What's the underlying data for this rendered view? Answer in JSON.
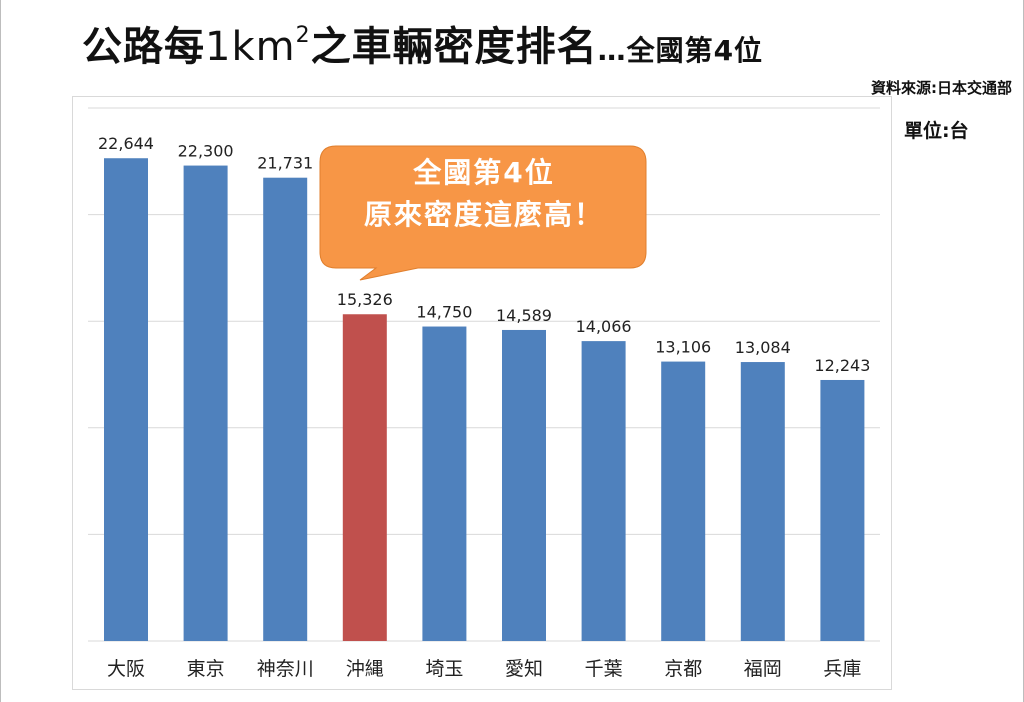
{
  "header": {
    "title_prefix": "公路每",
    "title_km": "1km",
    "title_sup": "2",
    "title_suffix": "之車輛密度排名",
    "title_sub": "…全國第4位",
    "source": "資料來源:日本交通部",
    "unit": "單位:台"
  },
  "callout": {
    "line1": "全國第4位",
    "line2": "原來密度這麼高！"
  },
  "colors": {
    "bar": "#4f81bd",
    "highlight_bar": "#c0504d",
    "callout": "#f79646",
    "gridline": "#d9d9d9"
  },
  "chart_data": {
    "type": "bar",
    "categories": [
      "大阪",
      "東京",
      "神奈川",
      "沖縄",
      "埼玉",
      "愛知",
      "千葉",
      "京都",
      "福岡",
      "兵庫"
    ],
    "values": [
      22644,
      22300,
      21731,
      15326,
      14750,
      14589,
      14066,
      13106,
      13084,
      12243
    ],
    "data_labels": [
      "22,644",
      "22,300",
      "21,731",
      "15,326",
      "14,750",
      "14,589",
      "14,066",
      "13,106",
      "13,084",
      "12,243"
    ],
    "highlight_index": 3,
    "ylim": [
      0,
      25000
    ],
    "y_gridlines": [
      0,
      5000,
      10000,
      15000,
      20000,
      25000
    ],
    "grid": true,
    "y_tick_labels_shown": false
  }
}
